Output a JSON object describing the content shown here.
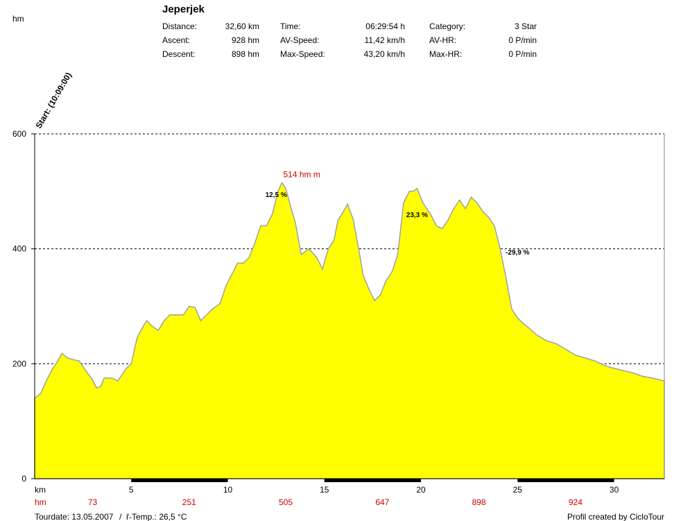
{
  "header": {
    "title": "Jeperjek",
    "y_unit": "hm",
    "stats": [
      {
        "label": "Distance:",
        "value": "32,60 km"
      },
      {
        "label": "Ascent:",
        "value": "928 hm"
      },
      {
        "label": "Descent:",
        "value": "898 hm"
      },
      {
        "label": "Time:",
        "value": "06:29:54 h"
      },
      {
        "label": "AV-Speed:",
        "value": "11,42 km/h"
      },
      {
        "label": "Max-Speed:",
        "value": "43,20 km/h"
      },
      {
        "label": "Category:",
        "value": "3 Star"
      },
      {
        "label": "AV-HR:",
        "value": "0 P/min"
      },
      {
        "label": "Max-HR:",
        "value": "0 P/min"
      }
    ]
  },
  "start_label": "Start: (10:09:00)",
  "footer": {
    "tourdate": "Tourdate: 13.05.2007",
    "temp": "ř-Temp.: 26,5 °C",
    "credit": "Profil created by CicloTour"
  },
  "colors": {
    "fill": "#ffff00",
    "outline": "#a0a0a0",
    "highlight": "#cc0000"
  },
  "chart_data": {
    "type": "area",
    "xlabel": "km",
    "ylabel": "hm",
    "xlim": [
      0,
      32.6
    ],
    "ylim": [
      0,
      600
    ],
    "x_ticks": [
      5,
      10,
      15,
      20,
      25,
      30
    ],
    "y_ticks": [
      0,
      200,
      400,
      600
    ],
    "grid": "dashed horizontal at 200, 400, 600",
    "cumulative_ascent_row": {
      "label": "hm",
      "at_km": [
        3,
        8,
        13,
        18,
        23,
        28
      ],
      "values": [
        "73",
        "251",
        "505",
        "647",
        "898",
        "924"
      ]
    },
    "max_label": "514 hm m",
    "grade_annotations": [
      {
        "x": 12.5,
        "y": 490,
        "text": "12,5 %"
      },
      {
        "x": 19.8,
        "y": 455,
        "text": "23,3 %"
      },
      {
        "x": 25.0,
        "y": 390,
        "text": "-29,9 %"
      }
    ],
    "x": [
      0,
      0.3,
      0.6,
      0.9,
      1.2,
      1.4,
      1.7,
      2.0,
      2.3,
      2.6,
      3.0,
      3.2,
      3.4,
      3.6,
      4.0,
      4.3,
      4.7,
      5.0,
      5.3,
      5.5,
      5.8,
      6.1,
      6.4,
      6.7,
      7.0,
      7.3,
      7.7,
      8.0,
      8.3,
      8.6,
      8.9,
      9.2,
      9.6,
      9.9,
      10.2,
      10.5,
      10.8,
      11.1,
      11.4,
      11.7,
      12.0,
      12.3,
      12.6,
      12.8,
      13.0,
      13.2,
      13.5,
      13.8,
      14.2,
      14.6,
      14.9,
      15.2,
      15.5,
      15.7,
      15.9,
      16.2,
      16.5,
      16.8,
      17.0,
      17.3,
      17.6,
      17.9,
      18.2,
      18.5,
      18.8,
      19.1,
      19.4,
      19.6,
      19.8,
      20.1,
      20.5,
      20.8,
      21.1,
      21.4,
      21.7,
      22.0,
      22.3,
      22.6,
      22.9,
      23.2,
      23.5,
      23.8,
      24.1,
      24.4,
      24.7,
      25.0,
      25.3,
      25.6,
      26.0,
      26.5,
      27.0,
      27.5,
      28.0,
      28.5,
      29.0,
      29.5,
      30.0,
      30.5,
      31.0,
      31.5,
      32.0,
      32.6
    ],
    "y": [
      140,
      148,
      170,
      190,
      205,
      218,
      210,
      207,
      205,
      190,
      172,
      158,
      160,
      175,
      175,
      170,
      190,
      200,
      245,
      258,
      275,
      265,
      258,
      275,
      285,
      285,
      285,
      300,
      298,
      275,
      285,
      295,
      305,
      335,
      355,
      375,
      375,
      385,
      410,
      440,
      440,
      460,
      500,
      515,
      505,
      480,
      445,
      390,
      400,
      385,
      365,
      400,
      415,
      450,
      460,
      478,
      450,
      395,
      355,
      330,
      310,
      320,
      345,
      360,
      390,
      480,
      500,
      500,
      505,
      480,
      460,
      440,
      435,
      450,
      470,
      485,
      470,
      490,
      480,
      465,
      455,
      440,
      400,
      350,
      295,
      280,
      270,
      262,
      250,
      240,
      235,
      225,
      215,
      210,
      205,
      197,
      192,
      188,
      184,
      178,
      175,
      170
    ]
  }
}
